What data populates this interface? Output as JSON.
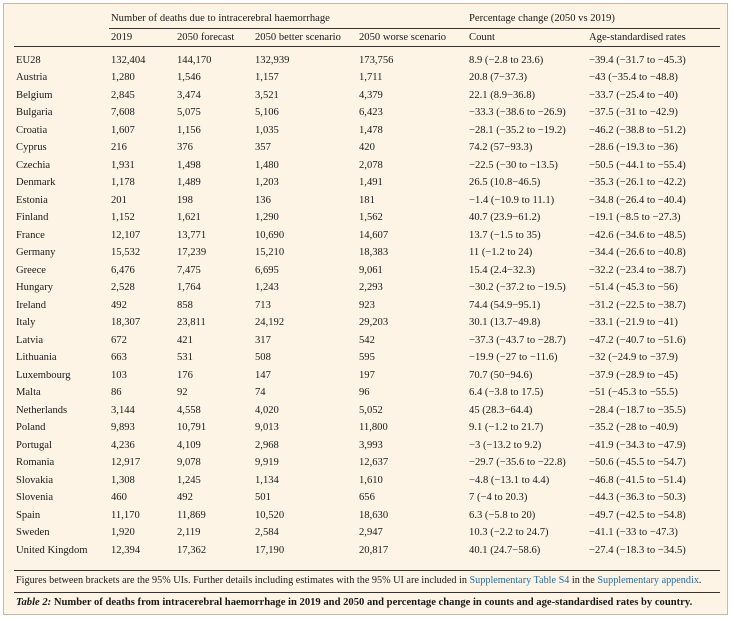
{
  "header": {
    "group_deaths": "Number of deaths due to intracerebral haemorrhage",
    "group_change": "Percentage change (2050 vs 2019)",
    "columns": [
      "2019",
      "2050 forecast",
      "2050 better scenario",
      "2050 worse scenario",
      "Count",
      "Age-standardised rates"
    ]
  },
  "rows": [
    [
      "EU28",
      "132,404",
      "144,170",
      "132,939",
      "173,756",
      "8.9 (−2.8 to 23.6)",
      "−39.4 (−31.7 to −45.3)"
    ],
    [
      "Austria",
      "1,280",
      "1,546",
      "1,157",
      "1,711",
      "20.8 (7−37.3)",
      "−43 (−35.4 to −48.8)"
    ],
    [
      "Belgium",
      "2,845",
      "3,474",
      "3,521",
      "4,379",
      "22.1 (8.9−36.8)",
      "−33.7 (−25.4 to −40)"
    ],
    [
      "Bulgaria",
      "7,608",
      "5,075",
      "5,106",
      "6,423",
      "−33.3 (−38.6 to −26.9)",
      "−37.5 (−31 to −42.9)"
    ],
    [
      "Croatia",
      "1,607",
      "1,156",
      "1,035",
      "1,478",
      "−28.1 (−35.2 to −19.2)",
      "−46.2 (−38.8 to −51.2)"
    ],
    [
      "Cyprus",
      "216",
      "376",
      "357",
      "420",
      "74.2 (57−93.3)",
      "−28.6 (−19.3 to −36)"
    ],
    [
      "Czechia",
      "1,931",
      "1,498",
      "1,480",
      "2,078",
      "−22.5 (−30 to −13.5)",
      "−50.5 (−44.1 to −55.4)"
    ],
    [
      "Denmark",
      "1,178",
      "1,489",
      "1,203",
      "1,491",
      "26.5 (10.8−46.5)",
      "−35.3 (−26.1 to −42.2)"
    ],
    [
      "Estonia",
      "201",
      "198",
      "136",
      "181",
      "−1.4 (−10.9 to 11.1)",
      "−34.8 (−26.4 to −40.4)"
    ],
    [
      "Finland",
      "1,152",
      "1,621",
      "1,290",
      "1,562",
      "40.7 (23.9−61.2)",
      "−19.1 (−8.5 to −27.3)"
    ],
    [
      "France",
      "12,107",
      "13,771",
      "10,690",
      "14,607",
      "13.7 (−1.5 to 35)",
      "−42.6 (−34.6 to −48.5)"
    ],
    [
      "Germany",
      "15,532",
      "17,239",
      "15,210",
      "18,383",
      "11 (−1.2 to 24)",
      "−34.4 (−26.6 to −40.8)"
    ],
    [
      "Greece",
      "6,476",
      "7,475",
      "6,695",
      "9,061",
      "15.4 (2.4−32.3)",
      "−32.2 (−23.4 to −38.7)"
    ],
    [
      "Hungary",
      "2,528",
      "1,764",
      "1,243",
      "2,293",
      "−30.2 (−37.2 to −19.5)",
      "−51.4 (−45.3 to −56)"
    ],
    [
      "Ireland",
      "492",
      "858",
      "713",
      "923",
      "74.4 (54.9−95.1)",
      "−31.2 (−22.5 to −38.7)"
    ],
    [
      "Italy",
      "18,307",
      "23,811",
      "24,192",
      "29,203",
      "30.1 (13.7−49.8)",
      "−33.1 (−21.9 to −41)"
    ],
    [
      "Latvia",
      "672",
      "421",
      "317",
      "542",
      "−37.3 (−43.7 to −28.7)",
      "−47.2 (−40.7 to −51.6)"
    ],
    [
      "Lithuania",
      "663",
      "531",
      "508",
      "595",
      "−19.9 (−27 to −11.6)",
      "−32 (−24.9 to −37.9)"
    ],
    [
      "Luxembourg",
      "103",
      "176",
      "147",
      "197",
      "70.7 (50−94.6)",
      "−37.9 (−28.9 to −45)"
    ],
    [
      "Malta",
      "86",
      "92",
      "74",
      "96",
      "6.4 (−3.8 to 17.5)",
      "−51 (−45.3 to −55.5)"
    ],
    [
      "Netherlands",
      "3,144",
      "4,558",
      "4,020",
      "5,052",
      "45 (28.3−64.4)",
      "−28.4 (−18.7 to −35.5)"
    ],
    [
      "Poland",
      "9,893",
      "10,791",
      "9,013",
      "11,800",
      "9.1 (−1.2 to 21.7)",
      "−35.2 (−28 to −40.9)"
    ],
    [
      "Portugal",
      "4,236",
      "4,109",
      "2,968",
      "3,993",
      "−3 (−13.2 to 9.2)",
      "−41.9 (−34.3 to −47.9)"
    ],
    [
      "Romania",
      "12,917",
      "9,078",
      "9,919",
      "12,637",
      "−29.7 (−35.6 to −22.8)",
      "−50.6 (−45.5 to −54.7)"
    ],
    [
      "Slovakia",
      "1,308",
      "1,245",
      "1,134",
      "1,610",
      "−4.8 (−13.1 to 4.4)",
      "−46.8 (−41.5 to −51.4)"
    ],
    [
      "Slovenia",
      "460",
      "492",
      "501",
      "656",
      "7 (−4 to 20.3)",
      "−44.3 (−36.3 to −50.3)"
    ],
    [
      "Spain",
      "11,170",
      "11,869",
      "10,520",
      "18,630",
      "6.3 (−5.8 to 20)",
      "−49.7 (−42.5 to −54.8)"
    ],
    [
      "Sweden",
      "1,920",
      "2,119",
      "2,584",
      "2,947",
      "10.3 (−2.2 to 24.7)",
      "−41.1 (−33 to −47.3)"
    ],
    [
      "United Kingdom",
      "12,394",
      "17,362",
      "17,190",
      "20,817",
      "40.1 (24.7−58.6)",
      "−27.4 (−18.3 to −34.5)"
    ]
  ],
  "footnote": {
    "text_before": "Figures between brackets are the 95% UIs. Further details including estimates with the 95% UI are included in ",
    "link1": "Supplementary Table S4",
    "text_middle": " in the ",
    "link2": "Supplementary appendix",
    "text_after": "."
  },
  "caption": {
    "label": "Table 2:",
    "text": " Number of deaths from intracerebral haemorrhage in 2019 and 2050 and percentage change in counts and age-standardised rates by country."
  },
  "colors": {
    "background": "#fdf4e6",
    "link": "#1f6fa6",
    "rule": "#333333"
  }
}
